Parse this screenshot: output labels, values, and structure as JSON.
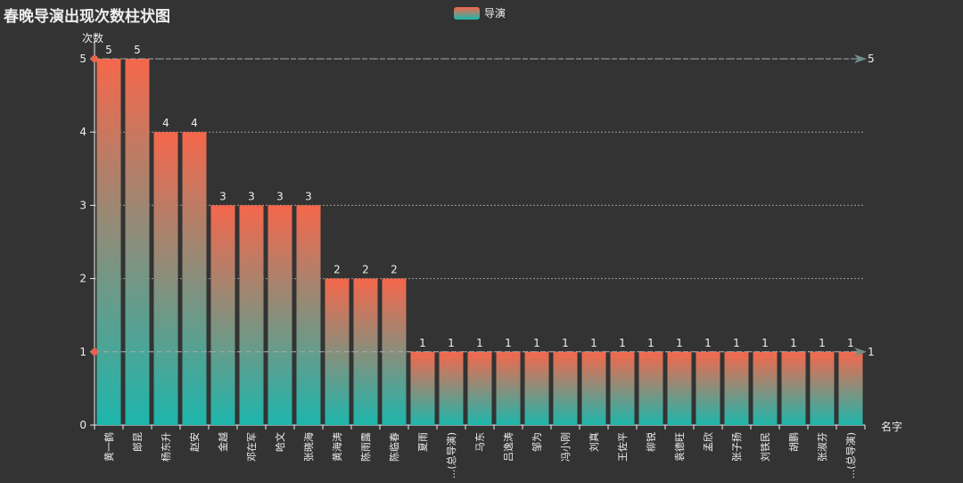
{
  "title": "春晚导演出现次数柱状图",
  "legend": {
    "label": "导演",
    "gradient_top": "#f5674b",
    "gradient_bottom": "#1db6ac"
  },
  "colors": {
    "background": "#333333",
    "axis": "#eeeeee",
    "grid": "#cccccc",
    "markline": "#aaaaaa",
    "markpoint": "#e9634a",
    "markline_arrow": "#6e8e8a"
  },
  "chart_data": {
    "type": "bar",
    "title": "春晚导演出现次数柱状图",
    "xlabel": "名字",
    "ylabel": "次数",
    "ylim": [
      0,
      5
    ],
    "yticks": [
      0,
      1,
      2,
      3,
      4,
      5
    ],
    "grid": "horizontal dotted",
    "legend_position": "top-center",
    "categories": [
      "黄一鹤",
      "郎昆",
      "杨东升",
      "赵安",
      "金越",
      "邓在军",
      "哈文",
      "张晓海",
      "黄海涛",
      "陈雨露",
      "陈临春",
      "夏雨",
      "...(总导演)",
      "马东",
      "吕逸涛",
      "邹为",
      "冯小刚",
      "刘真",
      "王佐平",
      "柳锐",
      "袁德旺",
      "孟欣",
      "张子扬",
      "刘铁民",
      "胡鹏",
      "张淑芬",
      "...(总导演)"
    ],
    "series": [
      {
        "name": "导演",
        "values": [
          5,
          5,
          4,
          4,
          3,
          3,
          3,
          3,
          2,
          2,
          2,
          1,
          1,
          1,
          1,
          1,
          1,
          1,
          1,
          1,
          1,
          1,
          1,
          1,
          1,
          1,
          1
        ]
      }
    ],
    "markline": {
      "max": 5,
      "min": 1
    }
  }
}
